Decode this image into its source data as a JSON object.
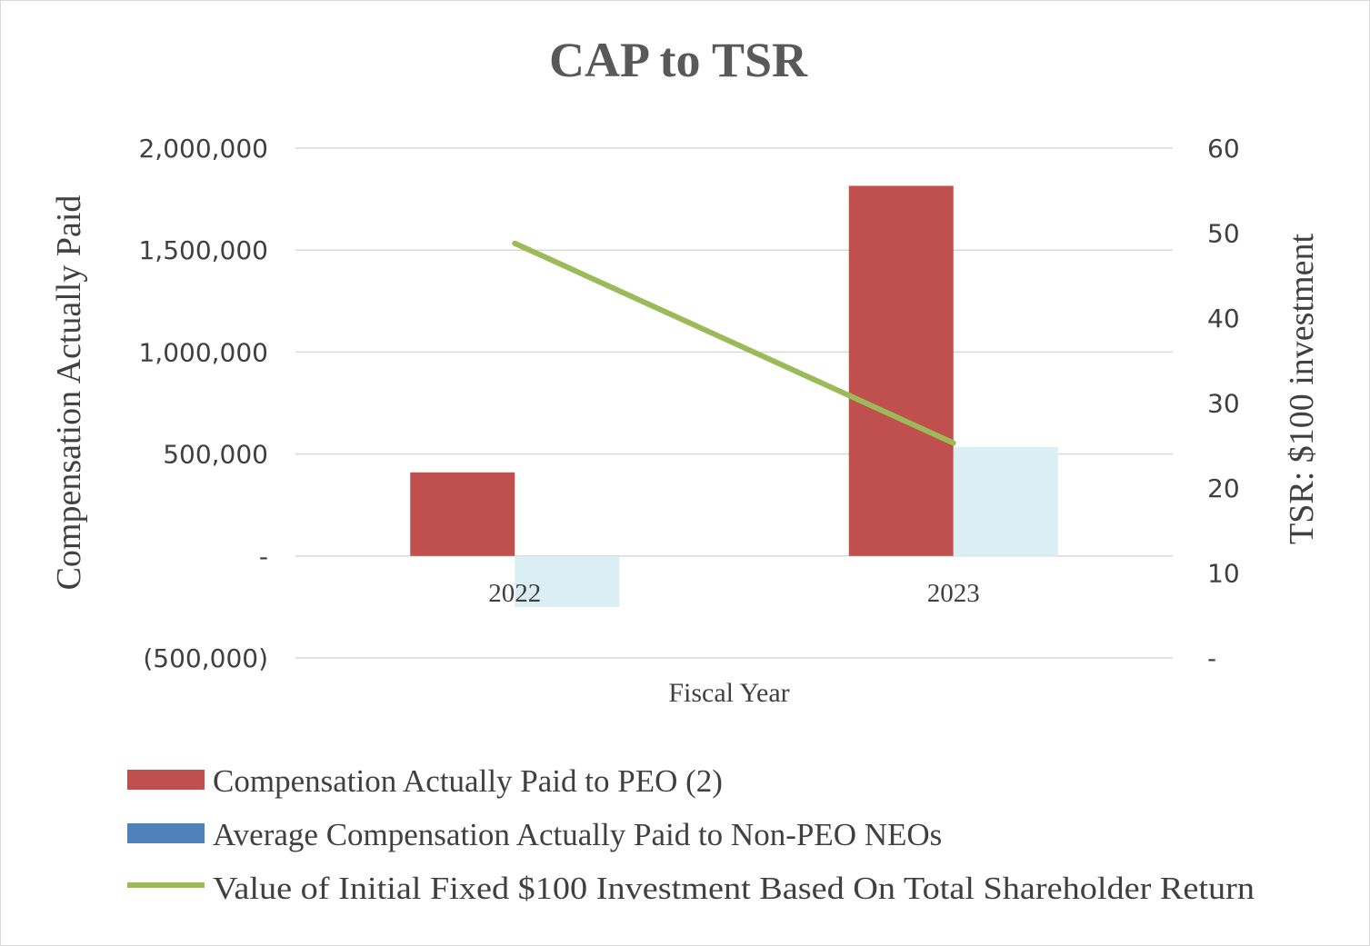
{
  "chart_data": {
    "type": "bar",
    "title": "CAP to TSR",
    "xlabel": "Fiscal Year",
    "ylabel": "Compensation Actually  Paid",
    "y2label": "TSR: $100 investment",
    "categories": [
      "2022",
      "2023"
    ],
    "ylim": [
      -500000,
      2000000
    ],
    "y_ticks": [
      -500000,
      0,
      500000,
      1000000,
      1500000,
      2000000
    ],
    "y_tick_labels": [
      "(500,000)",
      "-",
      "500,000",
      "1,000,000",
      "1,500,000",
      "2,000,000"
    ],
    "y2lim": [
      0,
      60
    ],
    "y2_ticks": [
      0,
      10,
      20,
      30,
      40,
      50,
      60
    ],
    "y2_tick_labels": [
      "-",
      "10",
      "20",
      "30",
      "40",
      "50",
      "60"
    ],
    "grid": true,
    "legend_position": "bottom",
    "series": [
      {
        "name": "Compensation Actually Paid to PEO (2)",
        "type": "bar",
        "axis": "left",
        "color": "#c0504d",
        "values": [
          410000,
          1815000
        ]
      },
      {
        "name": "Average Compensation Actually Paid to Non-PEO NEOs",
        "type": "bar",
        "axis": "left",
        "color": "#daeef3",
        "legend_color": "#4f81bd",
        "values": [
          -250000,
          535000
        ]
      },
      {
        "name": "Value of Initial Fixed $100 Investment Based On Total Shareholder Return",
        "type": "line",
        "axis": "right",
        "color": "#9bbb59",
        "values": [
          48.8,
          25.3
        ]
      }
    ]
  }
}
